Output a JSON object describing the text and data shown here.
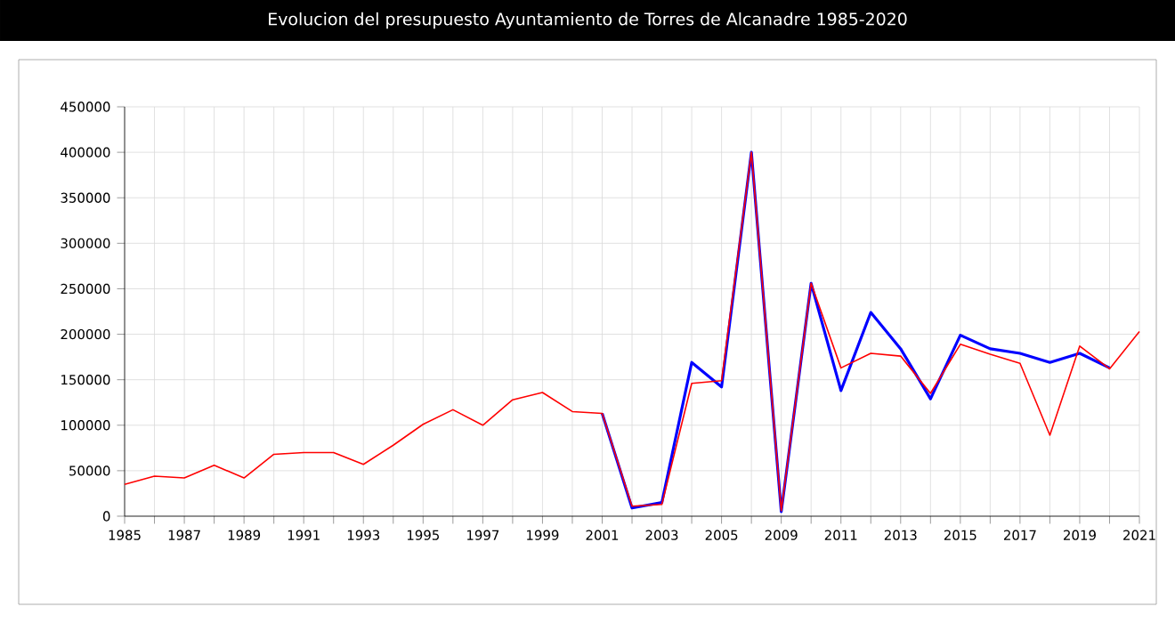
{
  "chart_data": {
    "type": "line",
    "title": "Evolucion del presupuesto Ayuntamiento de Torres de Alcanadre 1985-2020",
    "categories": [
      "1985",
      null,
      "1987",
      null,
      "1989",
      null,
      "1991",
      null,
      "1993",
      null,
      "1995",
      null,
      "1997",
      null,
      "1999",
      null,
      "2001",
      null,
      "2003",
      null,
      "2005",
      null,
      "2009",
      null,
      "2011",
      null,
      "2013",
      null,
      "2015",
      null,
      "2017",
      null,
      "2019",
      null,
      "2021"
    ],
    "series": [
      {
        "color": "#0000ff",
        "values": [
          null,
          null,
          null,
          null,
          null,
          null,
          null,
          null,
          null,
          null,
          null,
          null,
          null,
          null,
          null,
          null,
          113000,
          9000,
          15000,
          169000,
          142000,
          400000,
          5000,
          256000,
          138000,
          224000,
          184000,
          129000,
          199000,
          184000,
          179000,
          169000,
          179000,
          163000,
          null
        ]
      },
      {
        "color": "#ff0000",
        "values": [
          35000,
          44000,
          42000,
          56000,
          42000,
          68000,
          70000,
          70000,
          57000,
          78000,
          101000,
          117000,
          100000,
          128000,
          136000,
          115000,
          113000,
          11000,
          13000,
          146000,
          149000,
          400000,
          6000,
          256000,
          163000,
          179000,
          176000,
          135000,
          189000,
          178000,
          168000,
          89000,
          187000,
          162000,
          203000
        ]
      }
    ],
    "ylim": [
      0,
      450000
    ],
    "yticks": [
      0,
      50000,
      100000,
      150000,
      200000,
      250000,
      300000,
      350000,
      400000,
      450000
    ],
    "grid": true,
    "legend": false,
    "marker": "none",
    "line_style": "solid"
  }
}
